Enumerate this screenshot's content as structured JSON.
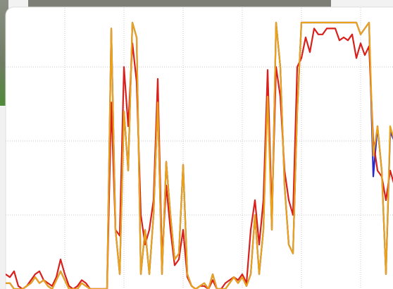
{
  "chart_data": {
    "type": "line",
    "x": [
      0,
      1,
      2,
      3,
      4,
      5,
      6,
      7,
      8,
      9,
      10,
      11,
      12,
      13,
      14,
      15,
      16,
      17,
      18,
      19,
      20,
      21,
      22,
      23,
      24,
      25,
      26,
      27,
      28,
      29,
      30,
      31,
      32,
      33,
      34,
      35,
      36,
      37,
      38,
      39,
      40,
      41,
      42,
      43,
      44,
      45,
      46,
      47,
      48,
      49,
      50,
      51,
      52,
      53,
      54,
      55,
      56,
      57,
      58,
      59,
      60,
      61,
      62,
      63,
      64,
      65,
      66,
      67,
      68,
      69,
      70,
      71,
      72,
      73,
      74,
      75,
      76,
      77,
      78,
      79,
      80,
      81,
      82,
      83,
      84,
      85,
      86,
      87,
      88,
      89,
      90,
      91,
      92
    ],
    "series": [
      {
        "color": "#2a2ac8",
        "values": [
          2,
          2,
          0,
          0,
          0,
          1,
          2,
          4,
          2,
          3,
          1,
          0,
          3,
          6,
          3,
          0,
          0,
          0,
          2,
          1,
          0,
          0,
          0,
          0,
          0,
          88,
          20,
          5,
          60,
          40,
          90,
          85,
          5,
          20,
          5,
          25,
          63,
          5,
          43,
          25,
          10,
          12,
          42,
          5,
          1,
          0,
          1,
          2,
          0,
          5,
          0,
          0,
          0,
          2,
          4,
          2,
          4,
          1,
          5,
          25,
          5,
          20,
          70,
          20,
          90,
          75,
          35,
          15,
          12,
          60,
          90,
          90,
          90,
          90,
          90,
          90,
          90,
          90,
          90,
          90,
          90,
          90,
          90,
          90,
          86,
          88,
          90,
          38,
          55,
          40,
          5,
          53,
          50
        ]
      },
      {
        "color": "#d8201c",
        "values": [
          5,
          4,
          6,
          1,
          0,
          1,
          3,
          5,
          6,
          3,
          2,
          1,
          4,
          10,
          5,
          1,
          0,
          1,
          3,
          2,
          0,
          0,
          0,
          0,
          0,
          63,
          20,
          18,
          75,
          55,
          83,
          70,
          25,
          15,
          20,
          30,
          71,
          10,
          35,
          20,
          8,
          10,
          20,
          4,
          1,
          0,
          1,
          1,
          0,
          3,
          0,
          0,
          2,
          3,
          4,
          3,
          5,
          2,
          20,
          30,
          15,
          30,
          74,
          25,
          75,
          65,
          40,
          30,
          25,
          75,
          78,
          85,
          80,
          88,
          86,
          86,
          88,
          88,
          88,
          84,
          85,
          84,
          86,
          78,
          83,
          79,
          82,
          50,
          40,
          38,
          30,
          40,
          35
        ]
      },
      {
        "color": "#eaa21a",
        "values": [
          2,
          2,
          0,
          0,
          0,
          1,
          2,
          4,
          2,
          3,
          1,
          0,
          3,
          6,
          3,
          0,
          0,
          0,
          2,
          1,
          0,
          0,
          0,
          0,
          0,
          88,
          20,
          5,
          60,
          40,
          90,
          85,
          5,
          20,
          5,
          25,
          63,
          5,
          43,
          25,
          10,
          12,
          42,
          5,
          1,
          0,
          1,
          2,
          0,
          5,
          0,
          0,
          0,
          2,
          4,
          2,
          4,
          1,
          5,
          25,
          5,
          20,
          65,
          20,
          90,
          75,
          35,
          15,
          12,
          60,
          90,
          90,
          90,
          90,
          90,
          90,
          90,
          90,
          90,
          90,
          90,
          90,
          90,
          90,
          86,
          88,
          90,
          45,
          55,
          40,
          5,
          55,
          50
        ]
      }
    ],
    "xlim": [
      0,
      92
    ],
    "ylim": [
      0,
      95
    ],
    "xticks": [
      14,
      28,
      42,
      56,
      70,
      84
    ],
    "yticks": [
      25,
      50,
      75
    ],
    "grid": true
  }
}
